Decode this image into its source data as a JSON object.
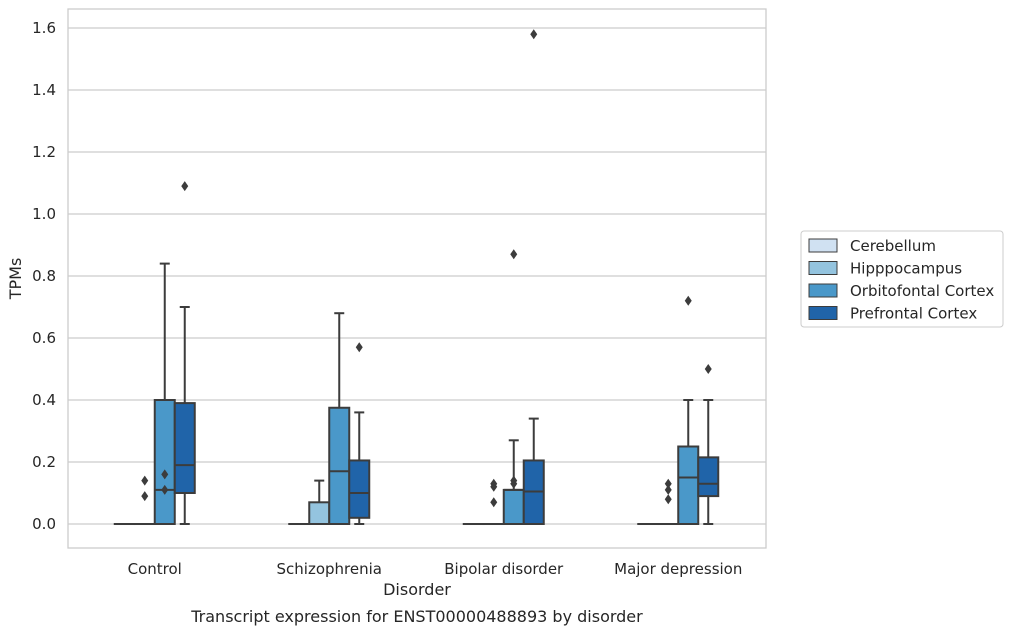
{
  "chart_data": {
    "type": "box",
    "title": "Transcript expression for ENST00000488893 by disorder",
    "xlabel": "Disorder",
    "ylabel": "TPMs",
    "ylim": [
      -0.08,
      1.66
    ],
    "yticks": [
      "0.0",
      "0.2",
      "0.4",
      "0.6",
      "0.8",
      "1.0",
      "1.2",
      "1.4",
      "1.6"
    ],
    "grid": true,
    "legend_position": "right",
    "categories": [
      "Control",
      "Schizophrenia",
      "Bipolar disorder",
      "Major depression"
    ],
    "series": [
      {
        "name": "Cerebellum",
        "color": "#d0e1f2",
        "boxes": [
          {
            "q1": 0,
            "median": 0,
            "q3": 0,
            "whisker_low": 0,
            "whisker_high": 0,
            "outliers": []
          },
          {
            "q1": 0,
            "median": 0,
            "q3": 0,
            "whisker_low": 0,
            "whisker_high": 0,
            "outliers": []
          },
          {
            "q1": 0,
            "median": 0,
            "q3": 0,
            "whisker_low": 0,
            "whisker_high": 0,
            "outliers": []
          },
          {
            "q1": 0,
            "median": 0,
            "q3": 0,
            "whisker_low": 0,
            "whisker_high": 0,
            "outliers": []
          }
        ]
      },
      {
        "name": "Hipppocampus",
        "color": "#94c4df",
        "boxes": [
          {
            "q1": 0,
            "median": 0,
            "q3": 0,
            "whisker_low": 0,
            "whisker_high": 0,
            "outliers": [
              0.09,
              0.14
            ]
          },
          {
            "q1": 0,
            "median": 0,
            "q3": 0.07,
            "whisker_low": 0,
            "whisker_high": 0.14,
            "outliers": []
          },
          {
            "q1": 0,
            "median": 0,
            "q3": 0,
            "whisker_low": 0,
            "whisker_high": 0,
            "outliers": [
              0.07,
              0.12,
              0.13
            ]
          },
          {
            "q1": 0,
            "median": 0,
            "q3": 0,
            "whisker_low": 0,
            "whisker_high": 0,
            "outliers": [
              0.08,
              0.11,
              0.13
            ]
          }
        ]
      },
      {
        "name": "Orbitofontal Cortex",
        "color": "#4a98c9",
        "boxes": [
          {
            "q1": 0,
            "median": 0.11,
            "q3": 0.4,
            "whisker_low": 0,
            "whisker_high": 0.84,
            "outliers": [
              0.11,
              0.16
            ]
          },
          {
            "q1": 0,
            "median": 0.17,
            "q3": 0.375,
            "whisker_low": 0,
            "whisker_high": 0.68,
            "outliers": []
          },
          {
            "q1": 0,
            "median": 0.11,
            "q3": 0.11,
            "whisker_low": 0,
            "whisker_high": 0.27,
            "outliers": [
              0.13,
              0.14,
              0.87
            ]
          },
          {
            "q1": 0,
            "median": 0.15,
            "q3": 0.25,
            "whisker_low": 0,
            "whisker_high": 0.4,
            "outliers": [
              0.72
            ]
          }
        ]
      },
      {
        "name": "Prefrontal Cortex",
        "color": "#2064a9",
        "boxes": [
          {
            "q1": 0.1,
            "median": 0.19,
            "q3": 0.39,
            "whisker_low": 0,
            "whisker_high": 0.7,
            "outliers": [
              1.09
            ]
          },
          {
            "q1": 0.02,
            "median": 0.1,
            "q3": 0.205,
            "whisker_low": 0,
            "whisker_high": 0.36,
            "outliers": [
              0.57
            ]
          },
          {
            "q1": 0,
            "median": 0.105,
            "q3": 0.205,
            "whisker_low": 0,
            "whisker_high": 0.34,
            "outliers": [
              1.58
            ]
          },
          {
            "q1": 0.09,
            "median": 0.13,
            "q3": 0.215,
            "whisker_low": 0,
            "whisker_high": 0.4,
            "outliers": [
              0.5
            ]
          }
        ]
      }
    ]
  }
}
